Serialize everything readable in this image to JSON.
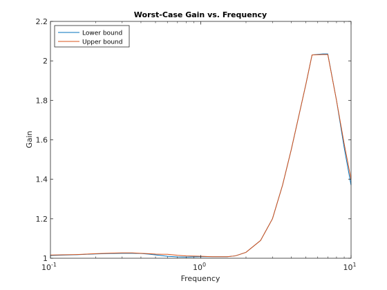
{
  "chart_data": {
    "type": "line",
    "title": "Worst-Case Gain vs. Frequency",
    "xlabel": "Frequency",
    "ylabel": "Gain",
    "xscale": "log",
    "xlim": [
      0.1,
      10
    ],
    "ylim": [
      1,
      2.2
    ],
    "xticks": [
      {
        "value": 0.1,
        "base": "10",
        "exp": "-1"
      },
      {
        "value": 1,
        "base": "10",
        "exp": "0"
      },
      {
        "value": 10,
        "base": "10",
        "exp": "1"
      }
    ],
    "yticks": [
      {
        "value": 1,
        "label": "1"
      },
      {
        "value": 1.2,
        "label": "1.2"
      },
      {
        "value": 1.4,
        "label": "1.4"
      },
      {
        "value": 1.6,
        "label": "1.6"
      },
      {
        "value": 1.8,
        "label": "1.8"
      },
      {
        "value": 2,
        "label": "2"
      },
      {
        "value": 2.2,
        "label": "2.2"
      }
    ],
    "grid": false,
    "legend_position": "top-left",
    "series": [
      {
        "name": "Lower bound",
        "color": "#0072BD",
        "x": [
          0.1,
          0.15,
          0.2,
          0.25,
          0.3,
          0.35,
          0.4,
          0.45,
          0.5,
          0.55,
          0.6,
          0.7,
          0.8,
          1.0,
          1.2,
          1.5,
          1.7,
          2.0,
          2.5,
          3.0,
          3.5,
          4.0,
          5.0,
          5.5,
          6.0,
          6.5,
          7.0,
          8.0,
          9.0,
          10.0
        ],
        "y": [
          1.014,
          1.018,
          1.022,
          1.024,
          1.025,
          1.025,
          1.024,
          1.021,
          1.017,
          1.013,
          1.01,
          1.007,
          1.006,
          1.008,
          1.008,
          1.008,
          1.012,
          1.03,
          1.09,
          1.2,
          1.37,
          1.55,
          1.88,
          2.03,
          2.033,
          2.035,
          2.035,
          1.8,
          1.56,
          1.37
        ]
      },
      {
        "name": "Upper bound",
        "color": "#D95319",
        "x": [
          0.1,
          0.15,
          0.2,
          0.25,
          0.3,
          0.35,
          0.4,
          0.45,
          0.5,
          0.55,
          0.6,
          0.7,
          0.8,
          1.0,
          1.2,
          1.5,
          1.7,
          2.0,
          2.5,
          3.0,
          3.5,
          4.0,
          5.0,
          5.5,
          6.0,
          6.5,
          7.0,
          8.0,
          9.0,
          10.0
        ],
        "y": [
          1.016,
          1.019,
          1.023,
          1.026,
          1.027,
          1.027,
          1.025,
          1.023,
          1.021,
          1.02,
          1.02,
          1.015,
          1.012,
          1.01,
          1.008,
          1.008,
          1.012,
          1.03,
          1.09,
          1.2,
          1.37,
          1.55,
          1.88,
          2.03,
          2.031,
          2.032,
          2.032,
          1.8,
          1.58,
          1.4
        ]
      }
    ]
  }
}
